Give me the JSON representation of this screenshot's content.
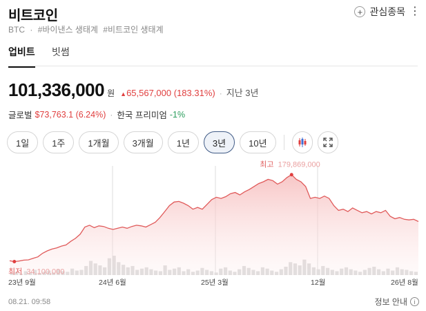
{
  "header": {
    "title": "비트코인",
    "ticker": "BTC",
    "tags": [
      "#바이낸스 생태계",
      "#비트코인 생태계"
    ],
    "watch_label": "관심종목",
    "more_icon": "more-vertical-icon"
  },
  "tabs": [
    {
      "label": "업비트",
      "active": true
    },
    {
      "label": "빗썸",
      "active": false
    }
  ],
  "price": {
    "value": "101,336,000",
    "unit": "원",
    "change": "65,567,000 (183.31%)",
    "period": "지난 3년"
  },
  "sub": {
    "global_label": "글로벌",
    "global_value": "$73,763.1 (6.24%)",
    "premium_label": "한국 프리미엄",
    "premium_value": "-1%"
  },
  "ranges": [
    {
      "label": "1일",
      "active": false
    },
    {
      "label": "1주",
      "active": false
    },
    {
      "label": "1개월",
      "active": false
    },
    {
      "label": "3개월",
      "active": false
    },
    {
      "label": "1년",
      "active": false
    },
    {
      "label": "3년",
      "active": true
    },
    {
      "label": "10년",
      "active": false
    }
  ],
  "colors": {
    "up": "#e03e3e",
    "down": "#2a9d5c",
    "active_border": "#3f5a85"
  },
  "chart_data": {
    "type": "area",
    "x_ticks": [
      "23년 9월",
      "24년 6월",
      "25년 3월",
      "12월",
      "26년 8월"
    ],
    "high_label": "최고",
    "high_value": "179,869,000",
    "low_label": "최저",
    "low_value": "34,100,000",
    "ylim": [
      30000000,
      190000000
    ],
    "values": [
      35500000,
      34100000,
      35000000,
      36500000,
      37000000,
      39500000,
      42000000,
      48000000,
      52000000,
      55000000,
      57000000,
      60000000,
      62000000,
      68000000,
      73000000,
      80000000,
      92000000,
      95000000,
      91000000,
      94000000,
      93000000,
      90000000,
      88000000,
      90000000,
      92000000,
      90000000,
      93000000,
      95000000,
      94000000,
      92000000,
      96000000,
      100000000,
      108000000,
      118000000,
      128000000,
      134000000,
      135000000,
      132000000,
      128000000,
      122000000,
      125000000,
      122000000,
      130000000,
      138000000,
      142000000,
      140000000,
      143000000,
      148000000,
      150000000,
      146000000,
      151000000,
      155000000,
      160000000,
      165000000,
      168000000,
      172000000,
      170000000,
      164000000,
      168000000,
      175000000,
      179869000,
      172000000,
      168000000,
      160000000,
      140000000,
      142000000,
      140000000,
      144000000,
      140000000,
      128000000,
      120000000,
      122000000,
      118000000,
      124000000,
      120000000,
      116000000,
      118000000,
      114000000,
      118000000,
      116000000,
      120000000,
      110000000,
      106000000,
      108000000,
      105000000,
      104000000,
      105000000,
      101336000
    ],
    "volumes": [
      3,
      5,
      2,
      6,
      4,
      8,
      3,
      5,
      7,
      4,
      9,
      6,
      5,
      10,
      7,
      8,
      14,
      22,
      18,
      15,
      12,
      26,
      30,
      20,
      16,
      12,
      14,
      8,
      10,
      12,
      9,
      7,
      6,
      15,
      8,
      10,
      12,
      6,
      9,
      5,
      7,
      11,
      8,
      6,
      4,
      10,
      12,
      7,
      5,
      9,
      14,
      11,
      8,
      6,
      12,
      10,
      7,
      5,
      9,
      13,
      20,
      18,
      15,
      24,
      18,
      12,
      9,
      14,
      11,
      8,
      6,
      10,
      12,
      9,
      7,
      5,
      8,
      11,
      13,
      9,
      6,
      10,
      7,
      12,
      9,
      8,
      6,
      5
    ]
  },
  "footer": {
    "time": "08.21. 09:58",
    "info_label": "정보 안내"
  }
}
